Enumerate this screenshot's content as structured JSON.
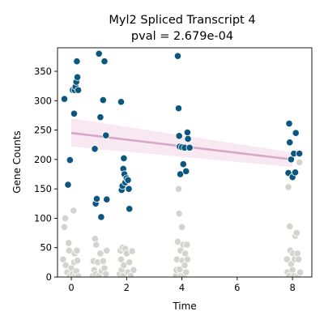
{
  "chart_data": {
    "type": "scatter",
    "title_line1": "Myl2 Spliced Transcript 4",
    "title_line2": "pval = 2.679e-04",
    "xlabel": "Time",
    "ylabel": "Gene Counts",
    "xlim": [
      -0.5,
      8.7
    ],
    "ylim": [
      0,
      390
    ],
    "xticks": [
      0,
      2,
      4,
      6,
      8
    ],
    "yticks": [
      0,
      50,
      100,
      150,
      200,
      250,
      300,
      350
    ],
    "grid": false,
    "colors": {
      "highlight": "#0b5780",
      "background_points": "#d3d4cd",
      "trend_line": "#d8a6c6",
      "trend_band": "#f8e8f1"
    },
    "trend": {
      "x": [
        0,
        8
      ],
      "y": [
        245,
        200
      ],
      "band_lower": [
        222,
        187
      ],
      "band_upper": [
        270,
        212
      ]
    },
    "series": [
      {
        "role": "highlight",
        "points": [
          [
            -0.25,
            303
          ],
          [
            -0.12,
            157
          ],
          [
            -0.05,
            199
          ],
          [
            0.05,
            318
          ],
          [
            0.1,
            278
          ],
          [
            0.12,
            318
          ],
          [
            0.15,
            324
          ],
          [
            0.18,
            332
          ],
          [
            0.2,
            367
          ],
          [
            0.22,
            340
          ],
          [
            0.25,
            318
          ],
          [
            0.85,
            218
          ],
          [
            0.88,
            125
          ],
          [
            0.92,
            133
          ],
          [
            1.0,
            380
          ],
          [
            1.05,
            272
          ],
          [
            1.08,
            102
          ],
          [
            1.15,
            301
          ],
          [
            1.2,
            367
          ],
          [
            1.25,
            241
          ],
          [
            1.28,
            132
          ],
          [
            1.8,
            298
          ],
          [
            1.82,
            148
          ],
          [
            1.85,
            155
          ],
          [
            1.88,
            184
          ],
          [
            1.9,
            202
          ],
          [
            1.92,
            175
          ],
          [
            1.95,
            161
          ],
          [
            2.0,
            168
          ],
          [
            2.05,
            165
          ],
          [
            2.08,
            150
          ],
          [
            2.1,
            116
          ],
          [
            3.85,
            376
          ],
          [
            3.88,
            287
          ],
          [
            3.9,
            240
          ],
          [
            3.92,
            222
          ],
          [
            3.94,
            175
          ],
          [
            4.0,
            221
          ],
          [
            4.05,
            192
          ],
          [
            4.1,
            220
          ],
          [
            4.15,
            180
          ],
          [
            4.2,
            246
          ],
          [
            4.22,
            235
          ],
          [
            4.28,
            220
          ],
          [
            7.85,
            177
          ],
          [
            7.88,
            261
          ],
          [
            7.9,
            229
          ],
          [
            7.95,
            200
          ],
          [
            8.0,
            170
          ],
          [
            8.05,
            210
          ],
          [
            8.1,
            178
          ],
          [
            8.12,
            245
          ],
          [
            8.25,
            210
          ]
        ]
      },
      {
        "role": "background",
        "points": [
          [
            -0.3,
            30
          ],
          [
            -0.25,
            85
          ],
          [
            -0.22,
            100
          ],
          [
            -0.2,
            20
          ],
          [
            -0.15,
            8
          ],
          [
            -0.1,
            58
          ],
          [
            -0.08,
            45
          ],
          [
            -0.05,
            2
          ],
          [
            0.0,
            15
          ],
          [
            0.05,
            5
          ],
          [
            0.08,
            113
          ],
          [
            0.1,
            25
          ],
          [
            0.12,
            40
          ],
          [
            0.15,
            2
          ],
          [
            0.18,
            10
          ],
          [
            0.2,
            45
          ],
          [
            0.22,
            28
          ],
          [
            0.25,
            1
          ],
          [
            0.78,
            2
          ],
          [
            0.8,
            27
          ],
          [
            0.83,
            12
          ],
          [
            0.86,
            65
          ],
          [
            0.88,
            5
          ],
          [
            0.9,
            55
          ],
          [
            0.95,
            25
          ],
          [
            1.0,
            2
          ],
          [
            1.05,
            40
          ],
          [
            1.1,
            10
          ],
          [
            1.15,
            27
          ],
          [
            1.2,
            15
          ],
          [
            1.25,
            5
          ],
          [
            1.28,
            45
          ],
          [
            1.75,
            5
          ],
          [
            1.78,
            45
          ],
          [
            1.8,
            30
          ],
          [
            1.82,
            12
          ],
          [
            1.85,
            50
          ],
          [
            1.88,
            2
          ],
          [
            1.9,
            20
          ],
          [
            1.95,
            48
          ],
          [
            2.0,
            40
          ],
          [
            2.05,
            8
          ],
          [
            2.1,
            25
          ],
          [
            2.15,
            2
          ],
          [
            2.2,
            44
          ],
          [
            2.25,
            12
          ],
          [
            3.78,
            2
          ],
          [
            3.8,
            12
          ],
          [
            3.82,
            30
          ],
          [
            3.85,
            60
          ],
          [
            3.88,
            150
          ],
          [
            3.9,
            108
          ],
          [
            3.92,
            13
          ],
          [
            3.95,
            45
          ],
          [
            3.98,
            2
          ],
          [
            4.0,
            85
          ],
          [
            4.02,
            28
          ],
          [
            4.05,
            55
          ],
          [
            4.08,
            2
          ],
          [
            4.1,
            20
          ],
          [
            4.12,
            40
          ],
          [
            4.15,
            8
          ],
          [
            4.18,
            55
          ],
          [
            4.2,
            30
          ],
          [
            7.8,
            30
          ],
          [
            7.82,
            8
          ],
          [
            7.85,
            153
          ],
          [
            7.88,
            2
          ],
          [
            7.9,
            86
          ],
          [
            7.92,
            45
          ],
          [
            7.95,
            22
          ],
          [
            8.0,
            12
          ],
          [
            8.02,
            40
          ],
          [
            8.05,
            2
          ],
          [
            8.08,
            30
          ],
          [
            8.1,
            70
          ],
          [
            8.15,
            75
          ],
          [
            8.18,
            40
          ],
          [
            8.2,
            2
          ],
          [
            8.22,
            30
          ],
          [
            8.25,
            195
          ],
          [
            8.28,
            8
          ]
        ]
      }
    ]
  }
}
